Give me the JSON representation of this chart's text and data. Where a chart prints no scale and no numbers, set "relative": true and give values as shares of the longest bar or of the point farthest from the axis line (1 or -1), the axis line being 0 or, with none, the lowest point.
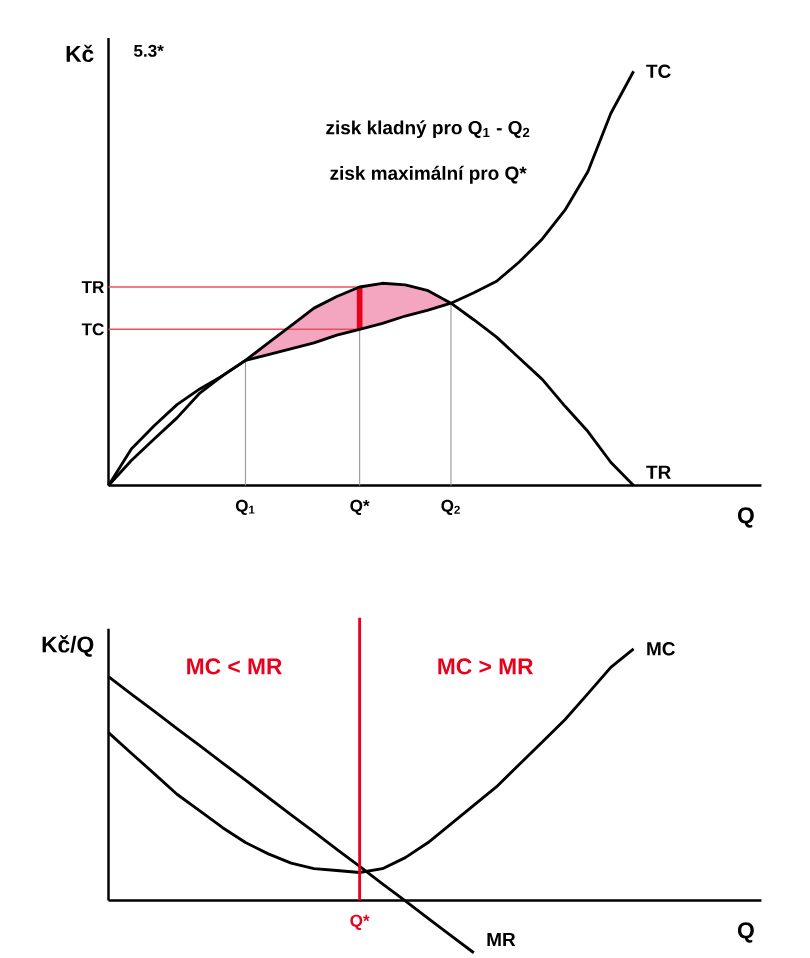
{
  "chart_data": [
    {
      "type": "line",
      "relative": true,
      "xlabel": "Q",
      "ylabel": "Kč",
      "marker": "none",
      "line_style": "solid",
      "categories": [
        null,
        null,
        null,
        null,
        null,
        null,
        "Q$_{1}$",
        null,
        null,
        null,
        null,
        "Q*",
        null,
        null,
        null,
        "Q$_{2}$",
        null,
        null,
        null,
        null,
        null,
        null,
        null,
        null,
        null,
        null,
        null,
        null,
        null
      ],
      "series": [
        {
          "name": "TC",
          "color": "#000000",
          "values": [
            0,
            0.088,
            0.144,
            0.195,
            0.233,
            0.265,
            0.302,
            0.316,
            0.33,
            0.344,
            0.363,
            0.377,
            0.391,
            0.409,
            0.423,
            0.44,
            0.465,
            0.493,
            0.54,
            0.595,
            0.665,
            0.758,
            0.898,
            1.0,
            null,
            null,
            null,
            null,
            null
          ]
        },
        {
          "name": "TR",
          "color": "#000000",
          "values": [
            0,
            0.06,
            0.112,
            0.163,
            0.223,
            0.265,
            0.302,
            0.344,
            0.386,
            0.428,
            0.456,
            0.479,
            0.488,
            0.484,
            0.47,
            0.44,
            0.4,
            0.358,
            0.307,
            0.256,
            0.191,
            0.13,
            0.056,
            0,
            null,
            null,
            null,
            null,
            null
          ]
        }
      ],
      "annotations": [
        "5.3*",
        "zisk kladný pro Q$_{1}$ - Q$_{2}$",
        "zisk maximální pro Q*"
      ],
      "ref_lines": [
        {
          "axis": "y",
          "value": 0.479,
          "label": "TR",
          "color": "#e8505b"
        },
        {
          "axis": "y",
          "value": 0.377,
          "label": "TC",
          "color": "#e8505b"
        },
        {
          "axis": "x",
          "value": "Q*",
          "color": "#e8001c"
        },
        {
          "axis": "x",
          "value": "Q$_{1}$",
          "color": "#999999"
        },
        {
          "axis": "x",
          "value": "Q*",
          "color": "#999999"
        },
        {
          "axis": "x",
          "value": "Q$_{2}$",
          "color": "#999999"
        }
      ]
    },
    {
      "type": "line",
      "relative": true,
      "xlabel": "Q",
      "ylabel": "Kč/Q",
      "marker": "none",
      "line_style": "solid",
      "categories": [
        null,
        null,
        null,
        null,
        null,
        null,
        null,
        null,
        null,
        null,
        null,
        null,
        null,
        null,
        null,
        null,
        null,
        null,
        null,
        null,
        null,
        null,
        null,
        null,
        null,
        null,
        null,
        null,
        null
      ],
      "series": [
        {
          "name": "MC",
          "color": "#000000",
          "values": [
            0.667,
            0.585,
            0.504,
            0.422,
            0.356,
            0.289,
            0.23,
            0.185,
            0.148,
            0.126,
            0.119,
            0.111,
            0.126,
            0.17,
            0.23,
            0.304,
            0.378,
            0.452,
            0.541,
            0.63,
            0.719,
            0.822,
            0.926,
            1.0,
            null,
            null,
            null,
            null,
            null
          ]
        },
        {
          "name": "MR",
          "color": "#000000",
          "values": [
            0.889,
            0.82,
            0.752,
            0.683,
            0.615,
            0.546,
            0.478,
            0.409,
            0.34,
            0.272,
            0.203,
            0.135,
            0.066,
            -0.002,
            -0.071,
            -0.14,
            -0.208,
            null,
            null,
            null,
            null,
            null,
            null,
            null,
            null,
            null,
            null,
            null,
            null
          ]
        }
      ],
      "annotations": [
        "MC < MR",
        "MC > MR",
        "Q*"
      ]
    }
  ]
}
